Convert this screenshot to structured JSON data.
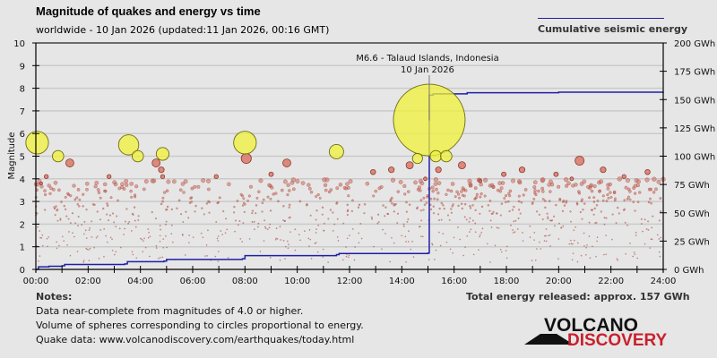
{
  "header": {
    "title": "Magnitude of quakes and energy vs time",
    "subtitle": "worldwide - 10 Jan 2026 (updated:11 Jan 2026, 00:16 GMT)"
  },
  "legend": {
    "label": "Cumulative seismic energy",
    "color": "#1f1fa8"
  },
  "footer": {
    "total": "Total energy released: approx. 157 GWh",
    "notes_title": "Notes:",
    "notes": [
      "Data near-complete from magnitudes of 4.0 or higher.",
      "Volume of spheres corresponding to circles proportional to energy.",
      "Quake data: www.volcanodiscovery.com/earthquakes/today.html"
    ]
  },
  "logo": {
    "line1": "VOLCANO",
    "line2": "DISCOVERY",
    "color1": "#111111",
    "color2": "#c8202c"
  },
  "chart_data": {
    "type": "scatter",
    "title": "Magnitude of quakes and energy vs time",
    "ylabel": "Magnitude",
    "y2label": "Cumulative seismic energy",
    "xlim": [
      0,
      24
    ],
    "ylim": [
      0,
      10
    ],
    "y2lim": [
      0,
      200
    ],
    "grid": true,
    "legend_position": "top-right",
    "x_ticks": [
      "00:00",
      "02:00",
      "04:00",
      "06:00",
      "08:00",
      "10:00",
      "12:00",
      "14:00",
      "16:00",
      "18:00",
      "20:00",
      "22:00",
      "24:00"
    ],
    "y_ticks": [
      "0",
      "1",
      "2",
      "3",
      "4",
      "5",
      "6",
      "7",
      "8",
      "9",
      "10"
    ],
    "y2_ticks": [
      "0 GWh",
      "25 GWh",
      "50 GWh",
      "75 GWh",
      "100 GWh",
      "125 GWh",
      "150 GWh",
      "175 GWh",
      "200 GWh"
    ],
    "annotation": {
      "line1": "M6.6 - Talaud Islands, Indonesia",
      "line2": "10 Jan 2026",
      "hour": 15.05,
      "mag": 6.6
    },
    "colors": {
      "large": "#f2f23a",
      "medium": "#d9705f",
      "small": "#b5473a",
      "energy": "#1f1fa8"
    },
    "large_quakes": [
      {
        "hour": 0.05,
        "mag": 5.6
      },
      {
        "hour": 0.85,
        "mag": 5.0
      },
      {
        "hour": 3.55,
        "mag": 5.5
      },
      {
        "hour": 3.9,
        "mag": 5.0
      },
      {
        "hour": 4.85,
        "mag": 5.1
      },
      {
        "hour": 8.0,
        "mag": 5.6
      },
      {
        "hour": 11.5,
        "mag": 5.2
      },
      {
        "hour": 15.05,
        "mag": 6.6
      },
      {
        "hour": 14.6,
        "mag": 4.9
      },
      {
        "hour": 15.3,
        "mag": 5.0
      },
      {
        "hour": 15.7,
        "mag": 5.0
      }
    ],
    "medium_quakes": [
      {
        "hour": 1.3,
        "mag": 4.7
      },
      {
        "hour": 0.4,
        "mag": 4.1
      },
      {
        "hour": 0.2,
        "mag": 3.8
      },
      {
        "hour": 4.6,
        "mag": 4.7
      },
      {
        "hour": 4.8,
        "mag": 4.4
      },
      {
        "hour": 4.85,
        "mag": 4.1
      },
      {
        "hour": 8.05,
        "mag": 4.9
      },
      {
        "hour": 9.6,
        "mag": 4.7
      },
      {
        "hour": 9.0,
        "mag": 4.2
      },
      {
        "hour": 13.6,
        "mag": 4.4
      },
      {
        "hour": 14.3,
        "mag": 4.6
      },
      {
        "hour": 15.4,
        "mag": 4.4
      },
      {
        "hour": 16.3,
        "mag": 4.6
      },
      {
        "hour": 20.8,
        "mag": 4.8
      },
      {
        "hour": 18.6,
        "mag": 4.4
      },
      {
        "hour": 17.9,
        "mag": 4.2
      },
      {
        "hour": 19.9,
        "mag": 4.2
      },
      {
        "hour": 21.7,
        "mag": 4.4
      },
      {
        "hour": 22.5,
        "mag": 4.1
      },
      {
        "hour": 23.4,
        "mag": 4.3
      },
      {
        "hour": 12.9,
        "mag": 4.3
      },
      {
        "hour": 14.9,
        "mag": 4.0
      },
      {
        "hour": 6.9,
        "mag": 4.1
      },
      {
        "hour": 2.8,
        "mag": 4.1
      },
      {
        "hour": 17.0,
        "mag": 3.9
      },
      {
        "hour": 20.5,
        "mag": 4.0
      }
    ],
    "small_quakes_note": "Many quakes of magnitude ~0.5-4 scattered throughout the day",
    "energy": {
      "hours": [
        0,
        0.1,
        0.5,
        1.0,
        1.1,
        3.4,
        3.5,
        4.9,
        5.0,
        7.9,
        8.0,
        11.5,
        11.6,
        15.0,
        15.05,
        15.2,
        16.5,
        20,
        24
      ],
      "gwh": [
        0,
        2.3,
        2.8,
        3.2,
        4.3,
        4.8,
        6.8,
        7.3,
        8.8,
        9.4,
        12.2,
        13.0,
        14.0,
        14.4,
        154.0,
        155.0,
        156.0,
        156.5,
        157
      ]
    }
  }
}
